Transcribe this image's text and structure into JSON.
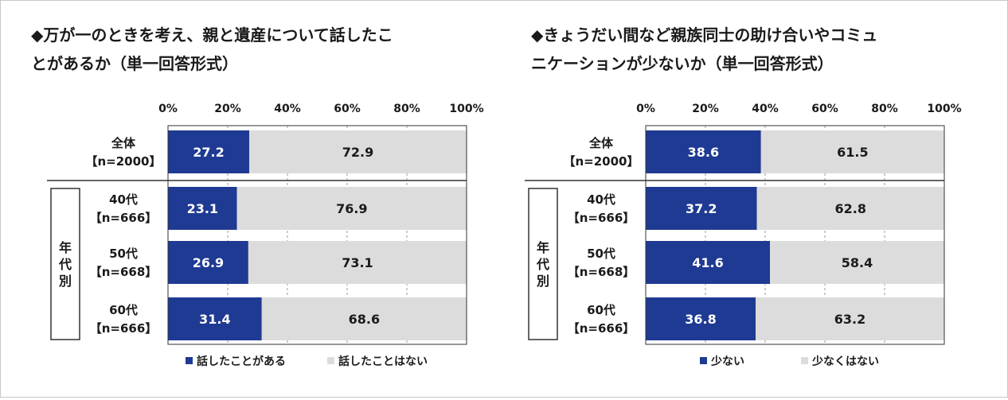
{
  "colors": {
    "primary": "#1f3a93",
    "secondary": "#dcdcdc",
    "frame": "#c8c8c8"
  },
  "chart_data": [
    {
      "type": "bar",
      "orientation": "horizontal",
      "stacked": "percent",
      "title": "◆万が一のときを考え、親と遺産について話したことがあるか（単一回答形式）",
      "title_lines": [
        "◆万が一のときを考え、親と遺産について話したこ",
        "とがあるか（単一回答形式）"
      ],
      "xlim": [
        0,
        100
      ],
      "ticks": [
        "0%",
        "20%",
        "40%",
        "60%",
        "80%",
        "100%"
      ],
      "categories": [
        {
          "label": "全体",
          "n": "【n=2000】"
        },
        {
          "label": "40代",
          "n": "【n=666】"
        },
        {
          "label": "50代",
          "n": "【n=668】"
        },
        {
          "label": "60代",
          "n": "【n=666】"
        }
      ],
      "group_label": "年代別",
      "series": [
        {
          "name": "話したことがある",
          "color": "#1f3a93",
          "values": [
            27.2,
            23.1,
            26.9,
            31.4
          ],
          "labels": [
            "27.2",
            "23.1",
            "26.9",
            "31.4"
          ]
        },
        {
          "name": "話したことはない",
          "color": "#dcdcdc",
          "values": [
            72.9,
            76.9,
            73.1,
            68.6
          ],
          "labels": [
            "72.9",
            "76.9",
            "73.1",
            "68.6"
          ]
        }
      ],
      "legend": "bottom"
    },
    {
      "type": "bar",
      "orientation": "horizontal",
      "stacked": "percent",
      "title": "◆きょうだい間など親族同士の助け合いやコミュニケーションが少ないか（単一回答形式）",
      "title_lines": [
        "◆きょうだい間など親族同士の助け合いやコミュ",
        "ニケーションが少ないか（単一回答形式）"
      ],
      "xlim": [
        0,
        100
      ],
      "ticks": [
        "0%",
        "20%",
        "40%",
        "60%",
        "80%",
        "100%"
      ],
      "categories": [
        {
          "label": "全体",
          "n": "【n=2000】"
        },
        {
          "label": "40代",
          "n": "【n=666】"
        },
        {
          "label": "50代",
          "n": "【n=668】"
        },
        {
          "label": "60代",
          "n": "【n=666】"
        }
      ],
      "group_label": "年代別",
      "series": [
        {
          "name": "少ない",
          "color": "#1f3a93",
          "values": [
            38.6,
            37.2,
            41.6,
            36.8
          ],
          "labels": [
            "38.6",
            "37.2",
            "41.6",
            "36.8"
          ]
        },
        {
          "name": "少なくはない",
          "color": "#dcdcdc",
          "values": [
            61.5,
            62.8,
            58.4,
            63.2
          ],
          "labels": [
            "61.5",
            "62.8",
            "58.4",
            "63.2"
          ]
        }
      ],
      "legend": "bottom"
    }
  ]
}
